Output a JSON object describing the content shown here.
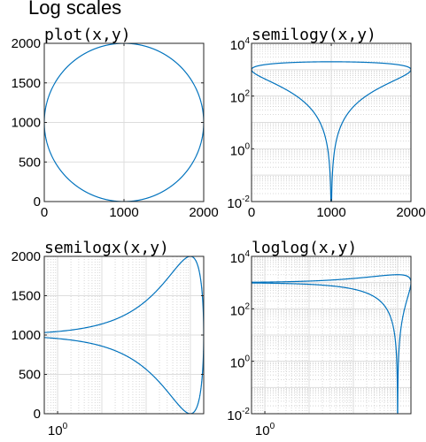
{
  "figure_title": "Log scales",
  "colors": {
    "line": "#0072BD",
    "grid_major": "#DDDDDD",
    "grid_minor": "#CCCCCC",
    "axis": "#262626"
  },
  "chart_data": [
    {
      "type": "line",
      "title": "plot(x,y)",
      "xscale": "linear",
      "yscale": "linear",
      "xlim": [
        0,
        2000
      ],
      "ylim": [
        0,
        2000
      ],
      "xticks": [
        0,
        1000,
        2000
      ],
      "yticks": [
        0,
        500,
        1000,
        1500,
        2000
      ],
      "xticklabels": [
        "0",
        "1000",
        "2000"
      ],
      "yticklabels": [
        "0",
        "500",
        "1000",
        "1500",
        "2000"
      ],
      "grid": true,
      "curve": "circle: x = 1000 + 1000*cos(t), y = 1000 + 1000*sin(t), t = 0 to 2*pi"
    },
    {
      "type": "line",
      "title": "semilogy(x,y)",
      "xscale": "linear",
      "yscale": "log",
      "xlim": [
        0,
        2000
      ],
      "ylim": [
        0.01,
        10000
      ],
      "xticks": [
        0,
        1000,
        2000
      ],
      "yticks": [
        0.01,
        1,
        100,
        10000
      ],
      "xticklabels": [
        "0",
        "1000",
        "2000"
      ],
      "yticklabels": [
        {
          "base": "10",
          "exp": "-2"
        },
        {
          "base": "10",
          "exp": "0"
        },
        {
          "base": "10",
          "exp": "2"
        },
        {
          "base": "10",
          "exp": "4"
        }
      ],
      "grid": true,
      "curve": "circle: x = 1000 + 1000*cos(t), y = 1000 + 1000*sin(t), t = 0 to 2*pi"
    },
    {
      "type": "line",
      "title": "semilogx(x,y)",
      "xscale": "log",
      "yscale": "linear",
      "xlim": [
        0.5,
        2000
      ],
      "ylim": [
        0,
        2000
      ],
      "xticks": [
        1
      ],
      "yticks": [
        0,
        500,
        1000,
        1500,
        2000
      ],
      "xticklabels": [
        {
          "base": "10",
          "exp": "0"
        }
      ],
      "yticklabels": [
        "0",
        "500",
        "1000",
        "1500",
        "2000"
      ],
      "grid": true,
      "curve": "circle: x = 1000 + 1000*cos(t), y = 1000 + 1000*sin(t), t = 0 to 2*pi"
    },
    {
      "type": "line",
      "title": "loglog(x,y)",
      "xscale": "log",
      "yscale": "log",
      "xlim": [
        0.5,
        2000
      ],
      "ylim": [
        0.01,
        10000
      ],
      "xticks": [
        1
      ],
      "yticks": [
        0.01,
        1,
        100,
        10000
      ],
      "xticklabels": [
        {
          "base": "10",
          "exp": "0"
        }
      ],
      "yticklabels": [
        {
          "base": "10",
          "exp": "-2"
        },
        {
          "base": "10",
          "exp": "0"
        },
        {
          "base": "10",
          "exp": "2"
        },
        {
          "base": "10",
          "exp": "4"
        }
      ],
      "grid": true,
      "curve": "circle: x = 1000 + 1000*cos(t), y = 1000 + 1000*sin(t), t = 0 to 2*pi"
    }
  ]
}
